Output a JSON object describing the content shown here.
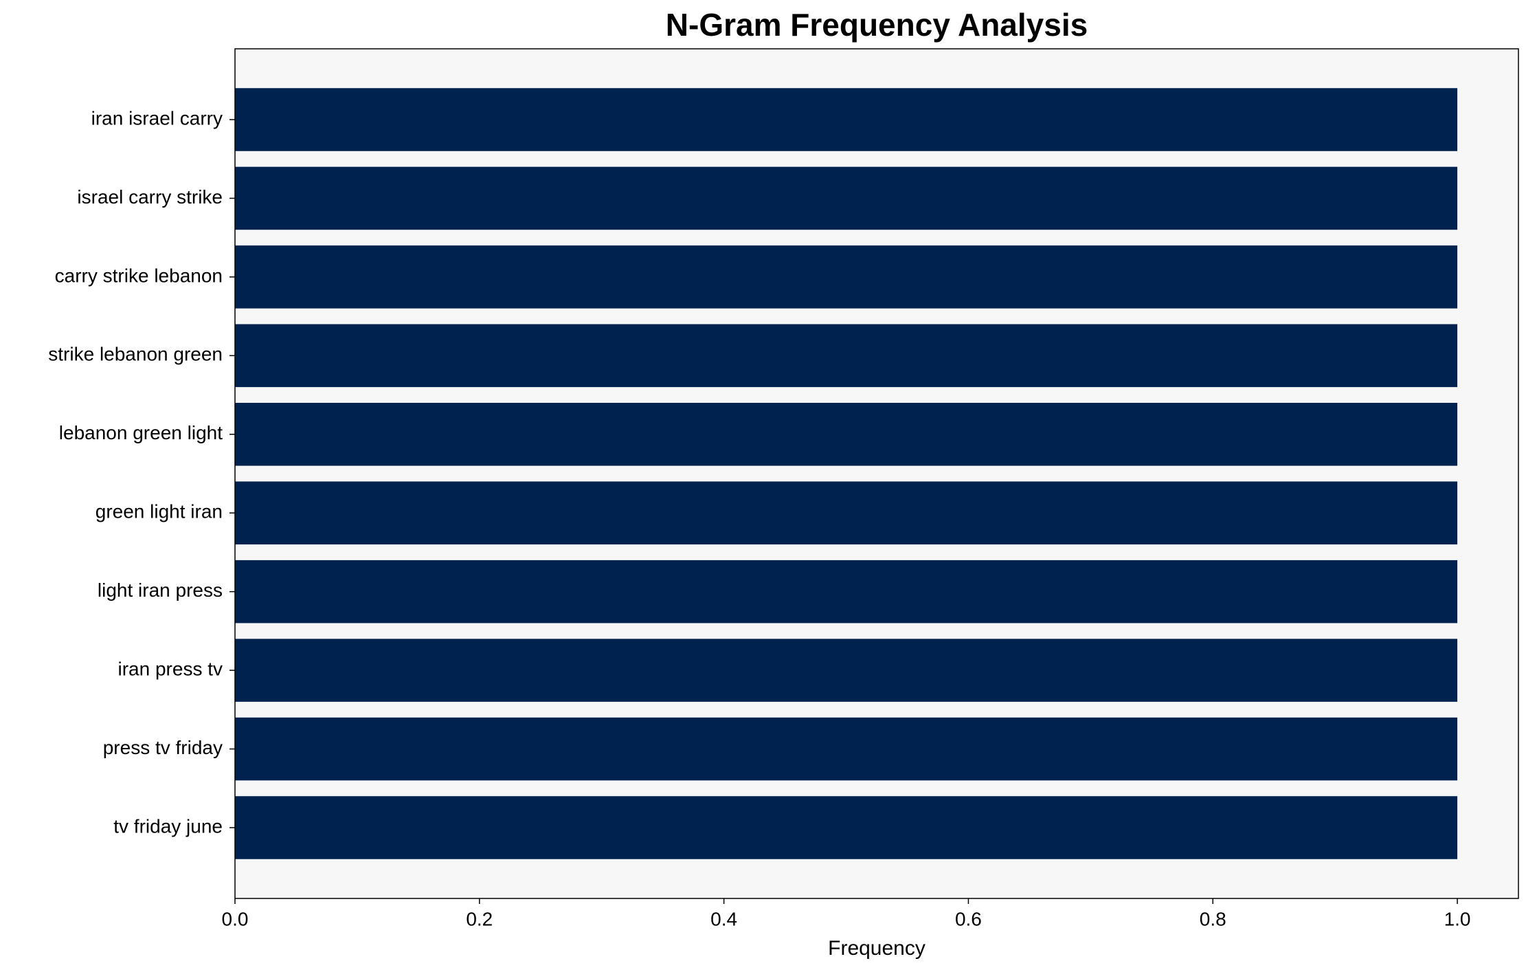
{
  "chart_data": {
    "type": "barh",
    "title": "N-Gram Frequency Analysis",
    "xlabel": "Frequency",
    "categories": [
      "iran israel carry",
      "israel carry strike",
      "carry strike lebanon",
      "strike lebanon green",
      "lebanon green light",
      "green light iran",
      "light iran press",
      "iran press tv",
      "press tv friday",
      "tv friday june"
    ],
    "values": [
      1,
      1,
      1,
      1,
      1,
      1,
      1,
      1,
      1,
      1
    ],
    "color": "#00224e",
    "xlim": [
      0,
      1.05
    ],
    "xticks": [
      {
        "value": 0,
        "label": "0.0"
      },
      0.2,
      0.4,
      0.6,
      0.8,
      {
        "value": 1,
        "label": "1.0"
      }
    ],
    "grid": false
  }
}
